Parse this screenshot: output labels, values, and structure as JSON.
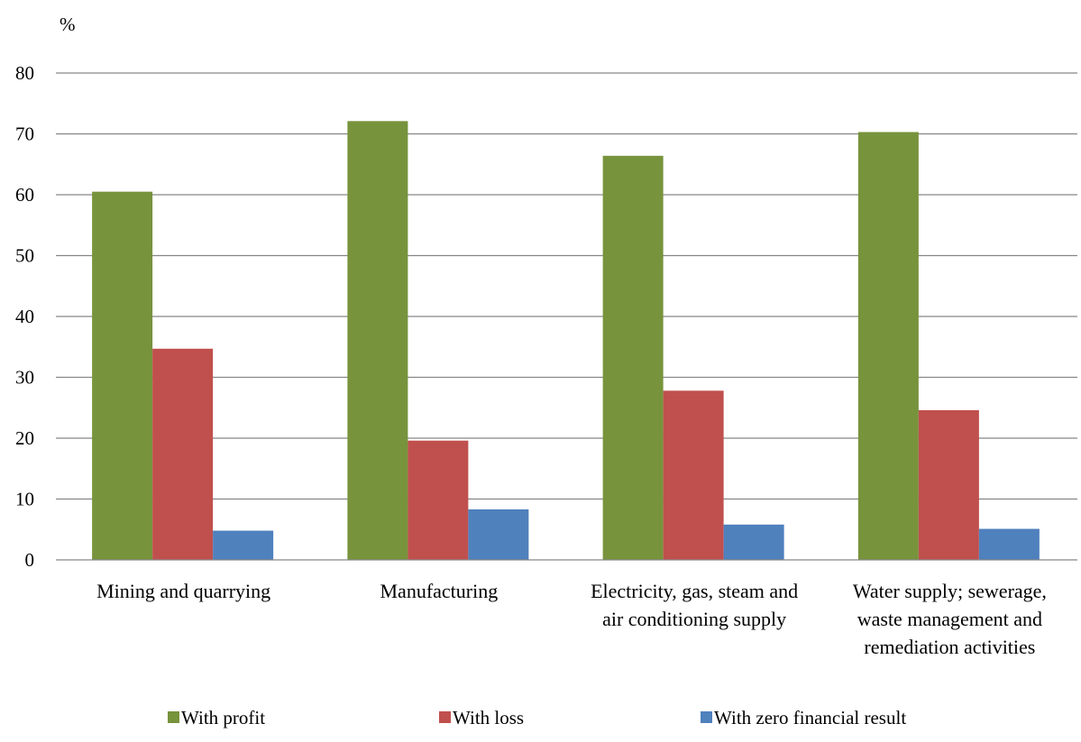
{
  "chart_data": {
    "type": "bar",
    "unit_label": "%",
    "title": "",
    "xlabel": "",
    "ylabel": "",
    "ylim": [
      0,
      80
    ],
    "y_ticks": [
      0,
      10,
      20,
      30,
      40,
      50,
      60,
      70,
      80
    ],
    "grid": true,
    "legend_position": "bottom",
    "categories": [
      [
        "Mining and quarrying"
      ],
      [
        "Manufacturing"
      ],
      [
        "Electricity, gas, steam and",
        "air conditioning supply"
      ],
      [
        "Water supply; sewerage,",
        "waste management and",
        "remediation activities"
      ]
    ],
    "series": [
      {
        "name": "With profit",
        "color": "#77933C",
        "values": [
          60.5,
          72.1,
          66.4,
          70.3
        ]
      },
      {
        "name": "With loss",
        "color": "#C0504D",
        "values": [
          34.7,
          19.6,
          27.8,
          24.6
        ]
      },
      {
        "name": "With zero financial result",
        "color": "#4F81BD",
        "values": [
          4.8,
          8.3,
          5.8,
          5.1
        ]
      }
    ]
  }
}
